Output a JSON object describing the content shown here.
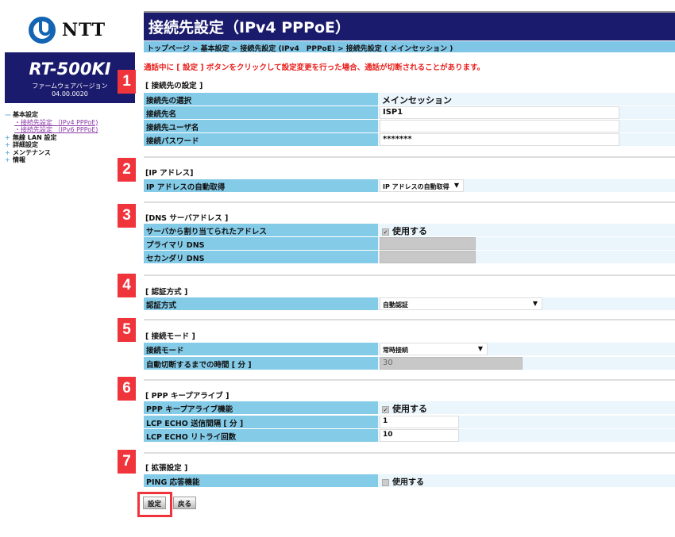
{
  "logo": {
    "text": "NTT"
  },
  "model": {
    "name": "RT-500KI",
    "fw_label": "ファームウェアバージョン",
    "fw_version": "04.00.0020"
  },
  "nav": [
    {
      "label": "基本設定",
      "icon": "minus"
    },
    {
      "label": "・接続先設定 （IPv4 PPPoE)",
      "sub": true
    },
    {
      "label": "・接続先設定 （IPv6 PPPoE)",
      "sub": true
    },
    {
      "label": "無線 LAN 設定",
      "icon": "plus"
    },
    {
      "label": "詳細設定",
      "icon": "plus"
    },
    {
      "label": "メンテナンス",
      "icon": "plus"
    },
    {
      "label": "情報",
      "icon": "plus"
    }
  ],
  "title": "接続先設定（IPv4 PPPoE）",
  "breadcrumb": "トップページ > 基本設定 > 接続先設定 (IPv4　PPPoE) > 接続先設定 ( メインセッション )",
  "warning": "通話中に [ 設定 ] ボタンをクリックして設定変更を行った場合、通話が切断されることがあります。",
  "sections": [
    {
      "num": "1",
      "heading": "[ 接続先の設定 ]",
      "rows": [
        {
          "label": "接続先の選択",
          "value": "メインセッション"
        },
        {
          "label": "接続先名",
          "value": "ISP1"
        },
        {
          "label": "接続先ユーザ名",
          "value": ""
        },
        {
          "label": "接続パスワード",
          "value": "*******"
        }
      ]
    },
    {
      "num": "2",
      "heading": "[IP アドレス]",
      "rows": [
        {
          "label": "IP アドレスの自動取得",
          "value": "IP アドレスの自動取得"
        }
      ]
    },
    {
      "num": "3",
      "heading": "[DNS サーバアドレス ]",
      "rows": [
        {
          "label": "サーバから割り当てられたアドレス",
          "value": "使用する",
          "checked": true
        },
        {
          "label": "プライマリ DNS",
          "value": ""
        },
        {
          "label": "セカンダリ DNS",
          "value": ""
        }
      ]
    },
    {
      "num": "4",
      "heading": "[ 認証方式 ]",
      "rows": [
        {
          "label": "認証方式",
          "value": "自動認証"
        }
      ]
    },
    {
      "num": "5",
      "heading": "[ 接続モード ]",
      "rows": [
        {
          "label": "接続モード",
          "value": "常時接続"
        },
        {
          "label": "自動切断するまでの時間 [ 分 ]",
          "value": "30"
        }
      ]
    },
    {
      "num": "6",
      "heading": "[ PPP キープアライブ ]",
      "rows": [
        {
          "label": "PPP キープアライブ機能",
          "value": "使用する",
          "checked": true
        },
        {
          "label": "LCP ECHO 送信間隔 [ 分 ]",
          "value": "1"
        },
        {
          "label": "LCP ECHO リトライ回数",
          "value": "10"
        }
      ]
    },
    {
      "num": "7",
      "heading": "[ 拡張設定 ]",
      "rows": [
        {
          "label": "PING 応答機能",
          "value": "使用する",
          "checked": false
        }
      ]
    }
  ],
  "buttons": {
    "set": "設定",
    "back": "戻る"
  },
  "colors": {
    "header": "#1b1b6e",
    "label_bg": "#84cbe8",
    "badge": "#f0343c",
    "warning": "#e8201c"
  }
}
